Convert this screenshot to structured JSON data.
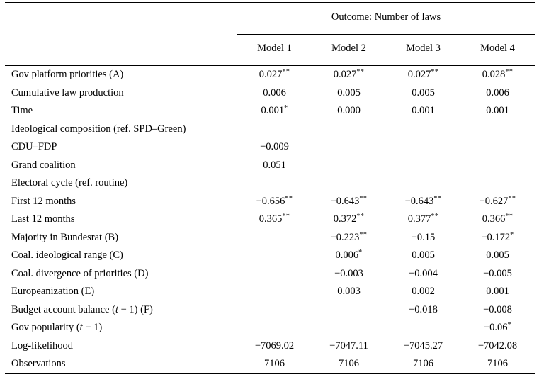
{
  "colors": {
    "background": "#ffffff",
    "text": "#000000",
    "rule": "#000000"
  },
  "table": {
    "outcome_header": "Outcome: Number of laws",
    "model_headers": [
      "Model 1",
      "Model 2",
      "Model 3",
      "Model 4"
    ],
    "rows": [
      {
        "label": "Gov platform priorities (A)",
        "values": [
          "0.027**",
          "0.027**",
          "0.027**",
          "0.028**"
        ]
      },
      {
        "label": "Cumulative law production",
        "values": [
          "0.006",
          "0.005",
          "0.005",
          "0.006"
        ]
      },
      {
        "label": "Time",
        "values": [
          "0.001*",
          "0.000",
          "0.001",
          "0.001"
        ]
      },
      {
        "label": "Ideological composition (ref. SPD–Green)",
        "values": [
          "",
          "",
          "",
          ""
        ]
      },
      {
        "label": "CDU–FDP",
        "values": [
          "−0.009",
          "",
          "",
          ""
        ]
      },
      {
        "label": "Grand coalition",
        "values": [
          "0.051",
          "",
          "",
          ""
        ]
      },
      {
        "label": "Electoral cycle (ref. routine)",
        "values": [
          "",
          "",
          "",
          ""
        ]
      },
      {
        "label": "First 12 months",
        "values": [
          "−0.656**",
          "−0.643**",
          "−0.643**",
          "−0.627**"
        ]
      },
      {
        "label": "Last 12 months",
        "values": [
          "0.365**",
          "0.372**",
          "0.377**",
          "0.366**"
        ]
      },
      {
        "label": "Majority in Bundesrat (B)",
        "values": [
          "",
          "−0.223**",
          "−0.15",
          "−0.172*"
        ]
      },
      {
        "label": "Coal. ideological range (C)",
        "values": [
          "",
          "0.006*",
          "0.005",
          "0.005"
        ]
      },
      {
        "label": "Coal. divergence of priorities (D)",
        "values": [
          "",
          "−0.003",
          "−0.004",
          "−0.005"
        ]
      },
      {
        "label": "Europeanization (E)",
        "values": [
          "",
          "0.003",
          "0.002",
          "0.001"
        ]
      },
      {
        "label": "Budget account balance (t − 1) (F)",
        "italic_t": true,
        "values": [
          "",
          "",
          "−0.018",
          "−0.008"
        ]
      },
      {
        "label": "Gov popularity (t − 1)",
        "italic_t": true,
        "values": [
          "",
          "",
          "",
          "−0.06*"
        ]
      },
      {
        "label": "Log-likelihood",
        "values": [
          "−7069.02",
          "−7047.11",
          "−7045.27",
          "−7042.08"
        ]
      },
      {
        "label": "Observations",
        "values": [
          "7106",
          "7106",
          "7106",
          "7106"
        ]
      }
    ]
  }
}
